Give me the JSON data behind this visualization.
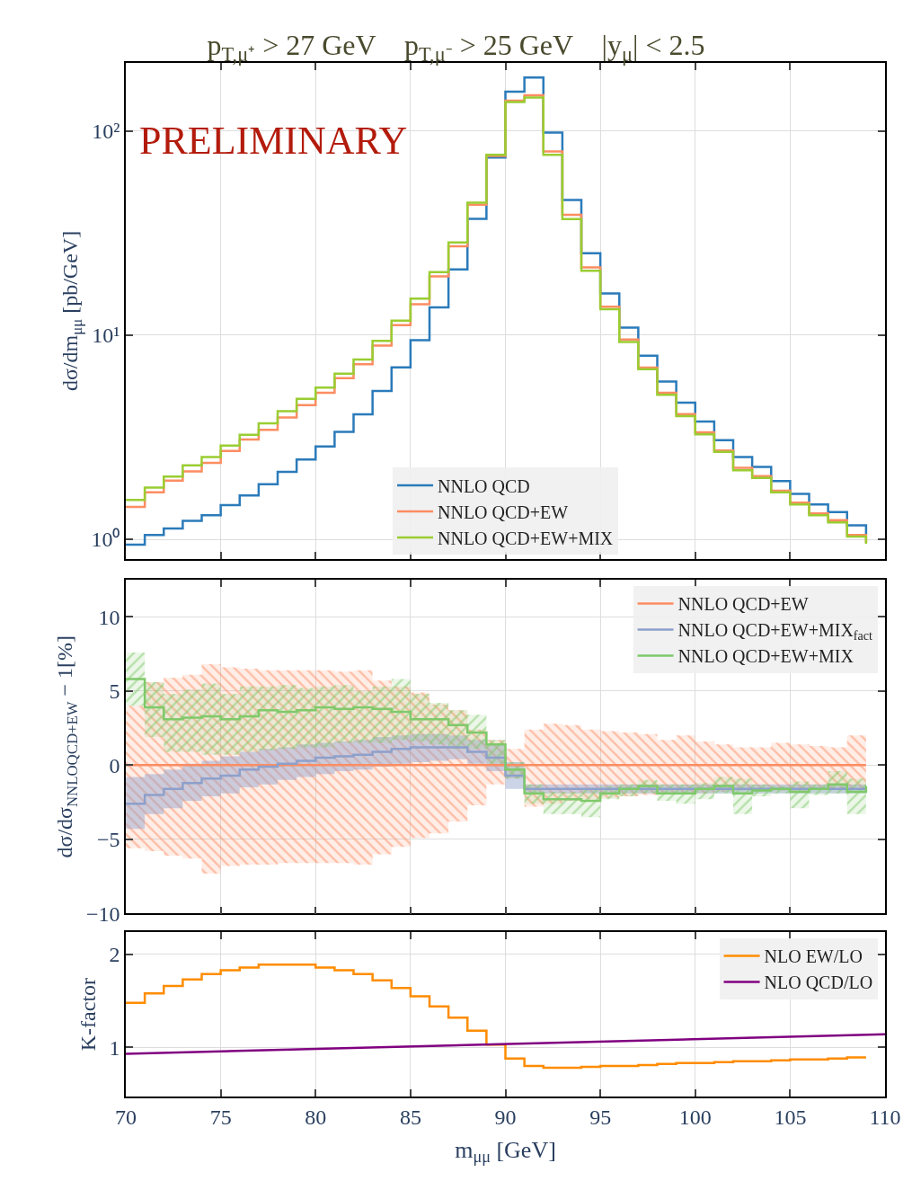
{
  "chart_data": [
    {
      "type": "step",
      "title": "p$_{T,μ⁺}$ > 27 GeV    p$_{T,μ⁻}$ > 25 GeV    |y$_{μ}$| < 2.5",
      "ylabel": "dσ/dm$_{μμ}$ [pb/GeV]",
      "log": true,
      "grid": true,
      "legend": "bottom",
      "tick_labels": "y",
      "annotations": [
        "PRELIMINARY"
      ],
      "xlim": [
        70,
        110
      ],
      "xticks": [
        70,
        75,
        80,
        85,
        90,
        95,
        100,
        105,
        110
      ],
      "ylim": [
        0.8,
        216
      ],
      "yticks": [
        {
          "value": 1,
          "label": "10⁰"
        },
        {
          "value": 10,
          "label": "10¹"
        },
        {
          "value": 100,
          "label": "10²"
        }
      ],
      "x": [
        70,
        71,
        72,
        73,
        74,
        75,
        76,
        77,
        78,
        79,
        80,
        81,
        82,
        83,
        84,
        85,
        86,
        87,
        88,
        89,
        90,
        91,
        92,
        93,
        94,
        95,
        96,
        97,
        98,
        99,
        100,
        101,
        102,
        103,
        104,
        105,
        106,
        107,
        108,
        109
      ],
      "series": [
        {
          "name": "NNLO QCD",
          "color": "#2b7bba",
          "values": [
            0.94,
            1.05,
            1.13,
            1.23,
            1.31,
            1.47,
            1.64,
            1.86,
            2.14,
            2.46,
            2.85,
            3.36,
            4.09,
            5.33,
            6.96,
            9.45,
            13.7,
            21.0,
            37.2,
            74.3,
            156,
            183,
            98.3,
            46.0,
            25.2,
            16.0,
            10.9,
            7.93,
            5.93,
            4.67,
            3.78,
            3.06,
            2.53,
            2.26,
            1.93,
            1.67,
            1.48,
            1.36,
            1.17,
            1.06
          ]
        },
        {
          "name": "NNLO QCD+EW",
          "color": "#fc8d62",
          "values": [
            1.44,
            1.7,
            1.94,
            2.15,
            2.37,
            2.71,
            3.08,
            3.44,
            3.95,
            4.54,
            5.22,
            6.16,
            7.2,
            8.9,
            11.2,
            14.2,
            19.4,
            27.3,
            43.6,
            75.6,
            141,
            150,
            79.6,
            38.9,
            21.5,
            13.8,
            9.52,
            6.93,
            5.22,
            4.11,
            3.34,
            2.72,
            2.24,
            2.04,
            1.73,
            1.51,
            1.34,
            1.24,
            1.05,
            0.96
          ]
        },
        {
          "name": "NNLO QCD+EW+MIX",
          "color": "#9acd32",
          "values": [
            1.56,
            1.79,
            2.03,
            2.3,
            2.53,
            2.88,
            3.25,
            3.7,
            4.24,
            4.88,
            5.54,
            6.48,
            7.61,
            9.39,
            11.8,
            15.1,
            20.4,
            28.5,
            44.6,
            76.6,
            139,
            146,
            76.6,
            37.1,
            20.7,
            13.4,
            9.26,
            6.81,
            5.1,
            4.01,
            3.27,
            2.68,
            2.18,
            2.0,
            1.7,
            1.48,
            1.31,
            1.21,
            1.03,
            0.95
          ]
        }
      ]
    },
    {
      "type": "step",
      "ylabel": "dσ/dσ$_{NNLOQCD+EW}$ − 1[%]",
      "grid": true,
      "legend": "top right",
      "tick_labels": "y",
      "xlim": [
        70,
        110
      ],
      "xticks": [
        70,
        75,
        80,
        85,
        90,
        95,
        100,
        105,
        110
      ],
      "ylim": [
        -10,
        12.5
      ],
      "yticks": [
        {
          "value": -10,
          "label": "−10"
        },
        {
          "value": -5,
          "label": "−5"
        },
        0,
        5,
        10
      ],
      "x": [
        70,
        71,
        72,
        73,
        74,
        75,
        76,
        77,
        78,
        79,
        80,
        81,
        82,
        83,
        84,
        85,
        86,
        87,
        88,
        89,
        90,
        91,
        92,
        93,
        94,
        95,
        96,
        97,
        98,
        99,
        100,
        101,
        102,
        103,
        104,
        105,
        106,
        107,
        108,
        109
      ],
      "series": [
        {
          "name": "NNLO QCD+EW",
          "color": "#fc8d62",
          "values": [
            0,
            0,
            0,
            0,
            0,
            0,
            0,
            0,
            0,
            0,
            0,
            0,
            0,
            0,
            0,
            0,
            0,
            0,
            0,
            0,
            0,
            0,
            0,
            0,
            0,
            0,
            0,
            0,
            0,
            0,
            0,
            0,
            0,
            0,
            0,
            0,
            0,
            0,
            0,
            0
          ],
          "lower": [
            -5.6,
            -5.8,
            -6.1,
            -6.3,
            -7.3,
            -6.8,
            -6.7,
            -6.7,
            -6.6,
            -6.6,
            -6.6,
            -6.6,
            -6.7,
            -6.0,
            -5.5,
            -4.9,
            -4.6,
            -3.8,
            -2.7,
            -1.3,
            -0.9,
            -2.8,
            -2.6,
            -2.4,
            -2.3,
            -2.2,
            -2.1,
            -2.0,
            -1.9,
            -1.9,
            -1.9,
            -1.8,
            -1.7,
            -1.7,
            -1.7,
            -1.7,
            -1.6,
            -1.6,
            -1.6,
            -1.5
          ],
          "upper": [
            4.0,
            5.6,
            5.9,
            6.1,
            6.8,
            6.6,
            6.5,
            6.4,
            6.4,
            6.4,
            6.4,
            6.3,
            6.4,
            5.7,
            5.3,
            4.9,
            4.1,
            3.7,
            2.4,
            1.7,
            1.1,
            2.4,
            2.8,
            2.7,
            2.4,
            2.3,
            2.2,
            2.1,
            1.7,
            2.0,
            1.6,
            1.4,
            1.2,
            1.2,
            1.5,
            1.4,
            1.3,
            1.2,
            2.0,
            1.1
          ]
        },
        {
          "name": "NNLO QCD+EW+MIX$_{fact}$",
          "color": "#8da0cb",
          "values": [
            -2.6,
            -2.0,
            -1.6,
            -1.2,
            -0.9,
            -0.7,
            -0.3,
            -0.1,
            0.1,
            0.3,
            0.5,
            0.6,
            0.7,
            0.9,
            1.1,
            1.2,
            1.2,
            1.2,
            0.9,
            0.5,
            -0.7,
            -1.6,
            -1.6,
            -1.6,
            -1.6,
            -1.6,
            -1.6,
            -1.6,
            -1.6,
            -1.6,
            -1.6,
            -1.6,
            -1.6,
            -1.6,
            -1.6,
            -1.6,
            -1.6,
            -1.6,
            -1.6,
            -1.6
          ],
          "lower": [
            -4.3,
            -3.3,
            -2.9,
            -2.4,
            -2.1,
            -1.9,
            -1.5,
            -1.3,
            -1.0,
            -0.8,
            -0.6,
            -0.4,
            -0.3,
            -0.1,
            0.1,
            0.2,
            0.3,
            0.4,
            0.1,
            -0.4,
            -1.6,
            -1.9,
            -1.9,
            -1.9,
            -1.9,
            -1.9,
            -1.9,
            -1.9,
            -1.9,
            -1.9,
            -1.9,
            -1.9,
            -1.9,
            -1.9,
            -1.9,
            -1.9,
            -1.9,
            -1.9,
            -1.9,
            -1.9
          ],
          "upper": [
            -0.8,
            -0.6,
            -0.3,
            0.1,
            0.3,
            0.6,
            0.9,
            1.1,
            1.2,
            1.4,
            1.5,
            1.6,
            1.7,
            1.9,
            2.0,
            2.1,
            2.1,
            2.0,
            1.7,
            1.4,
            0.2,
            -1.3,
            -1.3,
            -1.3,
            -1.3,
            -1.3,
            -1.3,
            -1.3,
            -1.3,
            -1.3,
            -1.3,
            -1.3,
            -1.3,
            -1.3,
            -1.3,
            -1.3,
            -1.3,
            -1.3,
            -1.3,
            -1.3
          ]
        },
        {
          "name": "NNLO QCD+EW+MIX",
          "color": "#7fc96a",
          "values": [
            5.8,
            3.9,
            3.1,
            3.2,
            3.3,
            3.1,
            3.3,
            3.7,
            3.6,
            3.7,
            3.9,
            3.8,
            3.9,
            3.8,
            3.6,
            3.1,
            3.1,
            2.7,
            2.2,
            1.4,
            -0.3,
            -1.9,
            -2.3,
            -2.3,
            -2.4,
            -1.9,
            -1.6,
            -1.4,
            -1.9,
            -1.9,
            -1.6,
            -1.4,
            -1.9,
            -1.7,
            -1.6,
            -1.8,
            -1.6,
            -1.3,
            -1.8,
            -1.4
          ],
          "lower": [
            4.0,
            1.9,
            0.9,
            0.9,
            0.7,
            0.7,
            0.9,
            1.0,
            1.1,
            1.2,
            1.2,
            1.5,
            1.5,
            1.5,
            1.7,
            1.6,
            1.4,
            1.1,
            1.1,
            0.1,
            -0.9,
            -2.6,
            -3.3,
            -3.3,
            -3.5,
            -2.3,
            -2.1,
            -1.9,
            -2.4,
            -2.6,
            -2.3,
            -1.9,
            -3.3,
            -2.1,
            -1.9,
            -2.9,
            -2.0,
            -1.9,
            -3.3,
            -1.9
          ],
          "upper": [
            7.6,
            5.6,
            4.8,
            5.1,
            5.5,
            4.8,
            5.3,
            5.3,
            5.4,
            5.2,
            5.3,
            5.4,
            5.0,
            5.3,
            5.8,
            4.8,
            4.2,
            3.7,
            3.4,
            1.7,
            0.2,
            -1.3,
            -1.8,
            -1.8,
            -1.6,
            -1.4,
            -1.3,
            -1.0,
            -1.3,
            -1.3,
            -1.2,
            -0.8,
            -0.9,
            -1.3,
            -1.4,
            -1.1,
            -1.3,
            -0.4,
            -0.9,
            -0.9
          ]
        }
      ]
    },
    {
      "type": "step",
      "ylabel": "K-factor",
      "xlabel": "m$_{μμ}$ [GeV]",
      "grid": true,
      "legend": "top right",
      "xlim": [
        70,
        110
      ],
      "xticks": [
        70,
        75,
        80,
        85,
        90,
        95,
        100,
        105,
        110
      ],
      "ylim": [
        0.47,
        2.24
      ],
      "yticks": [
        1,
        2
      ],
      "x": [
        70,
        71,
        72,
        73,
        74,
        75,
        76,
        77,
        78,
        79,
        80,
        81,
        82,
        83,
        84,
        85,
        86,
        87,
        88,
        89,
        90,
        91,
        92,
        93,
        94,
        95,
        96,
        97,
        98,
        99,
        100,
        101,
        102,
        103,
        104,
        105,
        106,
        107,
        108,
        109
      ],
      "series": [
        {
          "name": "NLO EW/LO",
          "color": "#ff8c00",
          "values": [
            1.48,
            1.58,
            1.66,
            1.73,
            1.79,
            1.83,
            1.86,
            1.89,
            1.89,
            1.89,
            1.86,
            1.83,
            1.79,
            1.72,
            1.64,
            1.55,
            1.44,
            1.32,
            1.18,
            1.03,
            0.88,
            0.8,
            0.78,
            0.78,
            0.79,
            0.8,
            0.8,
            0.81,
            0.82,
            0.83,
            0.83,
            0.84,
            0.85,
            0.85,
            0.86,
            0.87,
            0.87,
            0.88,
            0.89,
            0.89
          ]
        },
        {
          "name": "NLO QCD/LO",
          "color": "#800080",
          "type": "line",
          "x": [
            70,
            110
          ],
          "values": [
            0.93,
            1.14
          ]
        }
      ]
    }
  ]
}
